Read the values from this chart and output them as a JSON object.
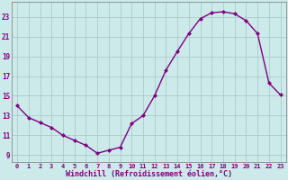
{
  "x_vals": [
    0,
    1,
    2,
    3,
    4,
    5,
    6,
    7,
    8,
    9,
    10,
    11,
    12,
    13,
    14,
    15,
    16,
    17,
    18,
    19,
    20,
    21,
    22,
    23
  ],
  "y_vals": [
    14.0,
    12.8,
    12.3,
    11.8,
    11.0,
    10.5,
    10.0,
    9.2,
    9.5,
    9.8,
    12.2,
    13.0,
    15.0,
    17.6,
    19.5,
    21.3,
    22.8,
    23.4,
    23.5,
    23.3,
    22.6,
    21.3,
    16.3,
    15.1
  ],
  "line_color": "#800080",
  "marker": "D",
  "marker_size": 2.0,
  "bg_color": "#cceaea",
  "grid_color": "#aacccc",
  "ylabel_ticks": [
    9,
    11,
    13,
    15,
    17,
    19,
    21,
    23
  ],
  "ylim": [
    8.3,
    24.5
  ],
  "xlim": [
    -0.5,
    23.5
  ],
  "xlabel": "Windchill (Refroidissement éolien,°C)",
  "font_color": "#800080",
  "xlabel_fontsize": 6.0,
  "ytick_fontsize": 5.5,
  "xtick_fontsize": 5.0,
  "linewidth": 1.0
}
